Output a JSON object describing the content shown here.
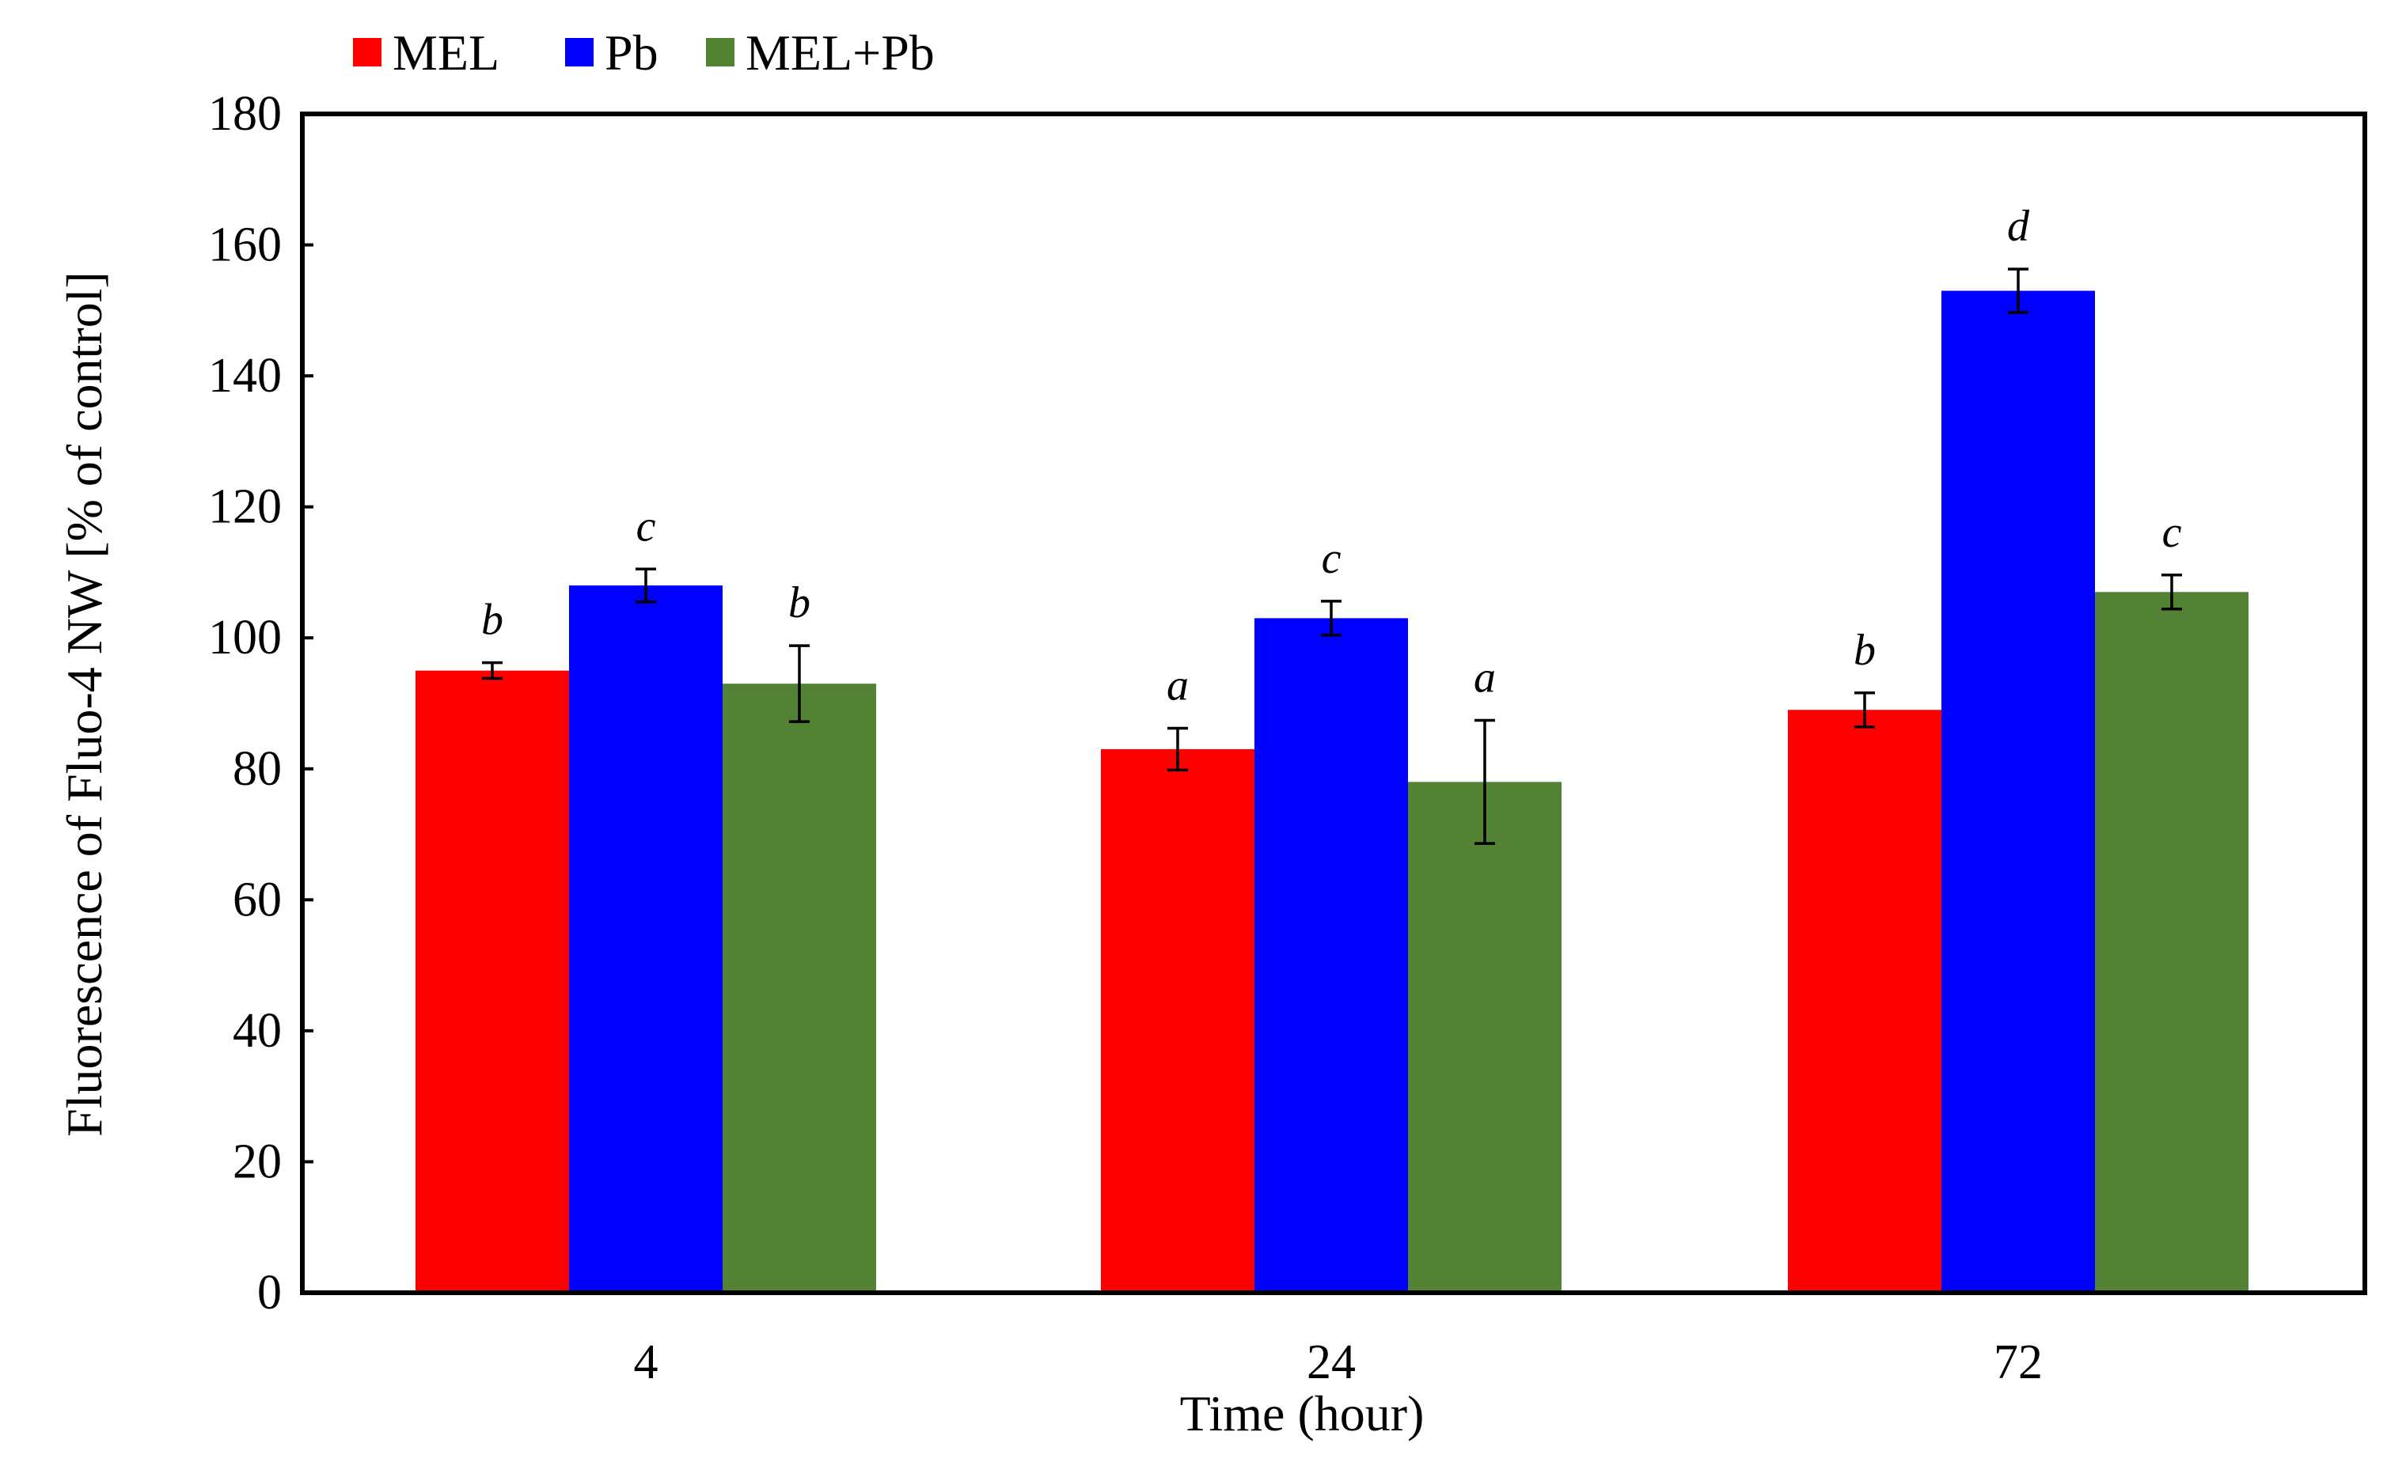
{
  "chart_data": {
    "type": "bar",
    "categories": [
      "4",
      "24",
      "72"
    ],
    "series": [
      {
        "name": "MEL",
        "color": "#ff0000",
        "values": [
          95,
          83,
          89
        ],
        "errors": [
          1.2,
          3.2,
          2.6
        ],
        "labels": [
          "b",
          "a",
          "b"
        ]
      },
      {
        "name": "Pb",
        "color": "#0000ff",
        "values": [
          108,
          103,
          153
        ],
        "errors": [
          2.5,
          2.6,
          3.3
        ],
        "labels": [
          "c",
          "c",
          "d"
        ]
      },
      {
        "name": "MEL+Pb",
        "color": "#548235",
        "values": [
          93,
          78,
          107
        ],
        "errors": [
          5.8,
          9.4,
          2.6
        ],
        "labels": [
          "b",
          "a",
          "c"
        ]
      }
    ],
    "xlabel": "Time (hour)",
    "ylabel": "Fluorescence of Fluo-4 NW [% of control]",
    "ylim": [
      0,
      180
    ],
    "yticks": [
      0,
      20,
      40,
      60,
      80,
      100,
      120,
      140,
      160,
      180
    ],
    "grid": false,
    "legend_position": "top-left"
  }
}
